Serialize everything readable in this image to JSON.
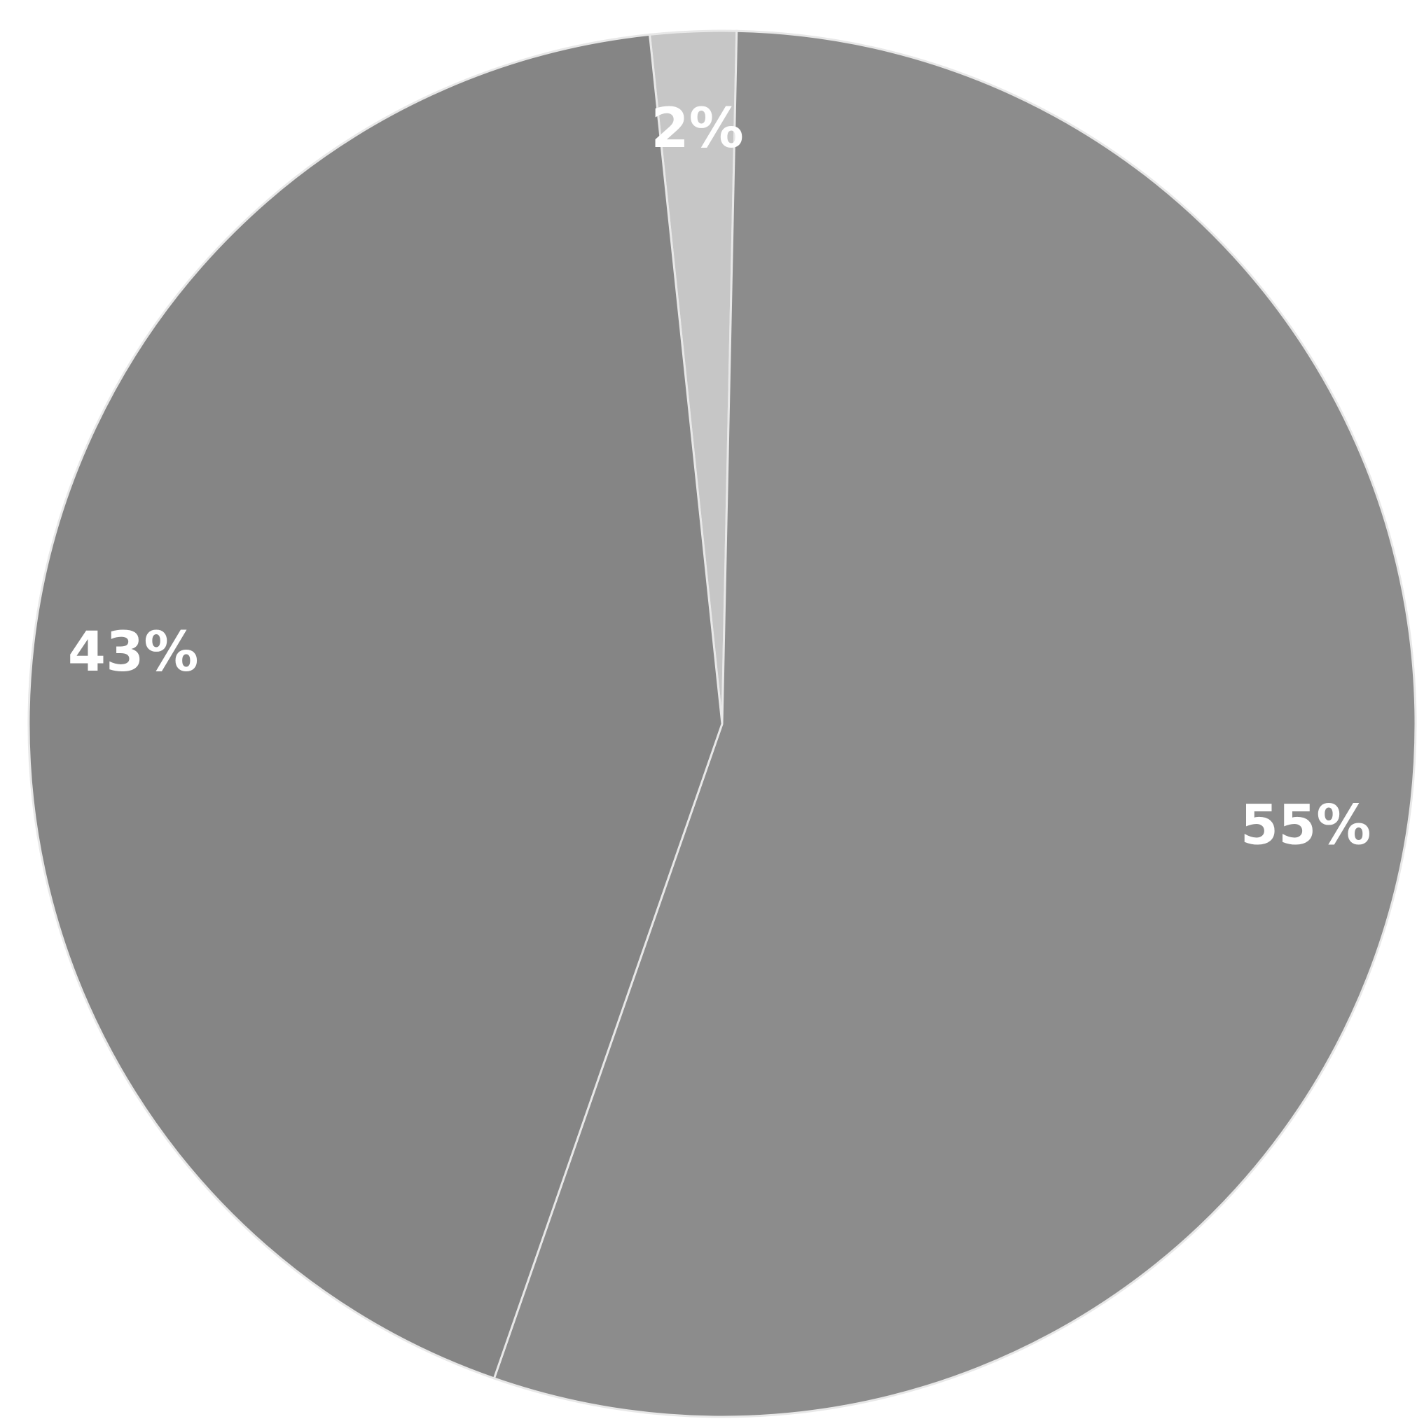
{
  "chart_data": {
    "type": "pie",
    "values": [
      2,
      55,
      43
    ],
    "value_labels": [
      "2%",
      "55%",
      "43%"
    ],
    "colors": [
      "#c6c6c6",
      "#8c8c8c",
      "#858585"
    ]
  }
}
